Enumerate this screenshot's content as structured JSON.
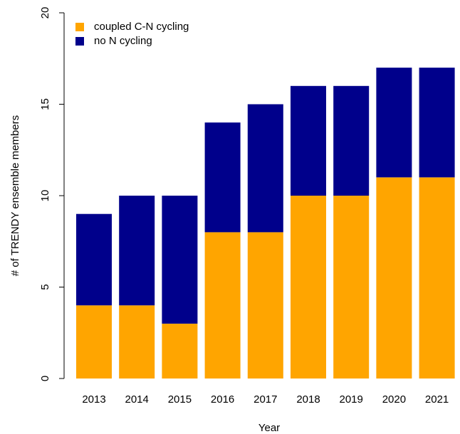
{
  "chart_data": {
    "type": "stacked-bar",
    "x_label": "Year",
    "y_label": "# of TRENDY ensemble members",
    "categories": [
      "2013",
      "2014",
      "2015",
      "2016",
      "2017",
      "2018",
      "2019",
      "2020",
      "2021"
    ],
    "series": [
      {
        "name": "coupled C-N cycling",
        "color": "#ffa500",
        "values": [
          4,
          4,
          3,
          8,
          8,
          10,
          10,
          11,
          11
        ]
      },
      {
        "name": "no N cycling",
        "color": "#00008b",
        "values": [
          5,
          6,
          7,
          6,
          7,
          6,
          6,
          6,
          6
        ]
      }
    ],
    "ylim": [
      0,
      20
    ],
    "yticks": [
      0,
      5,
      10,
      15,
      20
    ],
    "legend": "top-left"
  }
}
